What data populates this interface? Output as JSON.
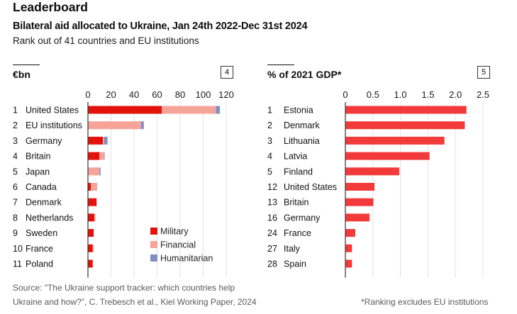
{
  "header": {
    "title": "Leaderboard",
    "subtitle": "Bilateral aid allocated to Ukraine, Jan 24th 2022-Dec 31st 2024",
    "description": "Rank out of 41 countries and EU institutions"
  },
  "footer": {
    "source_line1": "Source: \"The Ukraine support tracker: which countries help",
    "source_line2": "Ukraine and how?\", C. Trebesch et al., Kiel Working Paper, 2024",
    "note": "*Ranking excludes EU institutions"
  },
  "colors": {
    "military": "#E3120B",
    "financial": "#F6A39A",
    "humanitarian": "#7F8FC4",
    "gdp_bar": "#F23A3A",
    "grid": "#e2e2e2",
    "axis": "#333333"
  },
  "chart_data": [
    {
      "type": "bar",
      "stacked": true,
      "orientation": "horizontal",
      "title": "€bn",
      "panel_number": "4",
      "xlim": [
        0,
        120
      ],
      "xticks": [
        "0",
        "20",
        "40",
        "60",
        "80",
        "100",
        "120"
      ],
      "xtick_values": [
        0,
        20,
        40,
        60,
        80,
        100,
        120
      ],
      "grid": true,
      "legend_position": "bottom-right",
      "ranks": [
        "1",
        "2",
        "3",
        "4",
        "5",
        "6",
        "7",
        "8",
        "9",
        "10",
        "11"
      ],
      "categories": [
        "United States",
        "EU institutions",
        "Germany",
        "Britain",
        "Japan",
        "Canada",
        "Denmark",
        "Netherlands",
        "Sweden",
        "France",
        "Poland"
      ],
      "series": [
        {
          "name": "Military",
          "values": [
            64,
            0,
            13,
            10,
            0,
            2.5,
            7.5,
            5.5,
            5,
            4,
            4
          ]
        },
        {
          "name": "Financial",
          "values": [
            47,
            46,
            1,
            4,
            10,
            5.5,
            0,
            1,
            0,
            1,
            0.5
          ]
        },
        {
          "name": "Humanitarian",
          "values": [
            3.5,
            2.5,
            3,
            0.5,
            1,
            0,
            0,
            0,
            0,
            0,
            0
          ]
        }
      ]
    },
    {
      "type": "bar",
      "orientation": "horizontal",
      "title": "% of 2021 GDP*",
      "panel_number": "5",
      "xlim": [
        0,
        2.5
      ],
      "xticks": [
        "0",
        "0.5",
        "1.0",
        "1.5",
        "2.0",
        "2.5"
      ],
      "xtick_values": [
        0,
        0.5,
        1.0,
        1.5,
        2.0,
        2.5
      ],
      "grid": true,
      "ranks": [
        "1",
        "2",
        "3",
        "4",
        "5",
        "12",
        "13",
        "16",
        "24",
        "27",
        "28"
      ],
      "categories": [
        "Estonia",
        "Denmark",
        "Lithuania",
        "Latvia",
        "Finland",
        "United States",
        "Britain",
        "Germany",
        "France",
        "Italy",
        "Spain"
      ],
      "values": [
        2.2,
        2.17,
        1.8,
        1.53,
        0.98,
        0.53,
        0.51,
        0.44,
        0.18,
        0.12,
        0.12
      ]
    }
  ]
}
